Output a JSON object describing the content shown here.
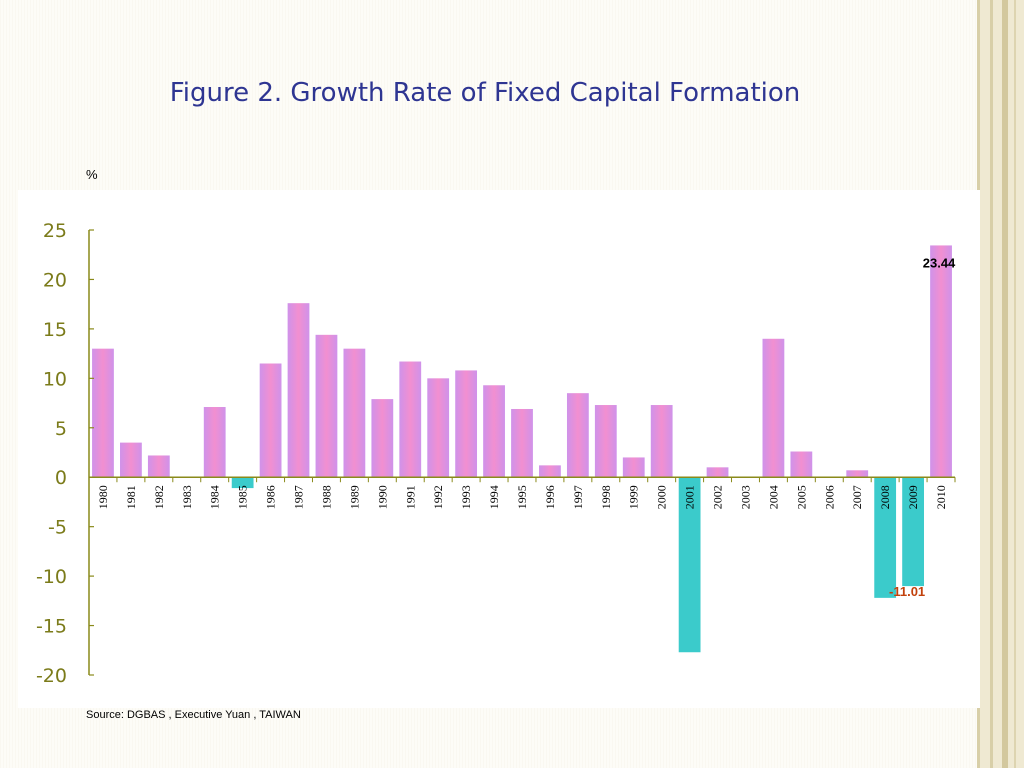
{
  "title": "Figure 2. Growth Rate of Fixed Capital Formation",
  "unit_label": "%",
  "source": "Source: DGBAS , Executive  Yuan , TAIWAN",
  "colors": {
    "positive_bar": "#cf92ea",
    "positive_bar_center": "#f28fd0",
    "negative_bar": "#3bcbcb",
    "axis": "#8a8a1a",
    "tick_label": "#7b7b1a",
    "title": "#2e3592",
    "max_label": "#000000",
    "min_label": "#c2410c"
  },
  "chart_data": {
    "type": "bar",
    "title": "Figure 2. Growth Rate of Fixed Capital Formation",
    "ylabel": "%",
    "ylim": [
      -20,
      25
    ],
    "yticks": [
      25,
      20,
      15,
      10,
      5,
      0,
      -5,
      -10,
      -15,
      -20
    ],
    "grid": false,
    "categories": [
      "1980",
      "1981",
      "1982",
      "1983",
      "1984",
      "1985",
      "1986",
      "1987",
      "1988",
      "1989",
      "1990",
      "1991",
      "1992",
      "1993",
      "1994",
      "1995",
      "1996",
      "1997",
      "1998",
      "1999",
      "2000",
      "2001",
      "2002",
      "2003",
      "2004",
      "2005",
      "2006",
      "2007",
      "2008",
      "2009",
      "2010"
    ],
    "values": [
      13.0,
      3.5,
      2.2,
      0.0,
      7.1,
      -1.1,
      11.5,
      17.6,
      14.4,
      13.0,
      7.9,
      11.7,
      10.0,
      10.8,
      9.3,
      6.9,
      1.2,
      8.5,
      7.3,
      2.0,
      7.3,
      -17.7,
      1.0,
      0.0,
      14.0,
      2.6,
      0.0,
      0.7,
      -12.2,
      -11.01,
      23.44
    ],
    "annotations": [
      {
        "category": "2010",
        "text": "23.44",
        "style": "max"
      },
      {
        "category": "2009",
        "text": "-11.01",
        "style": "min"
      }
    ]
  }
}
